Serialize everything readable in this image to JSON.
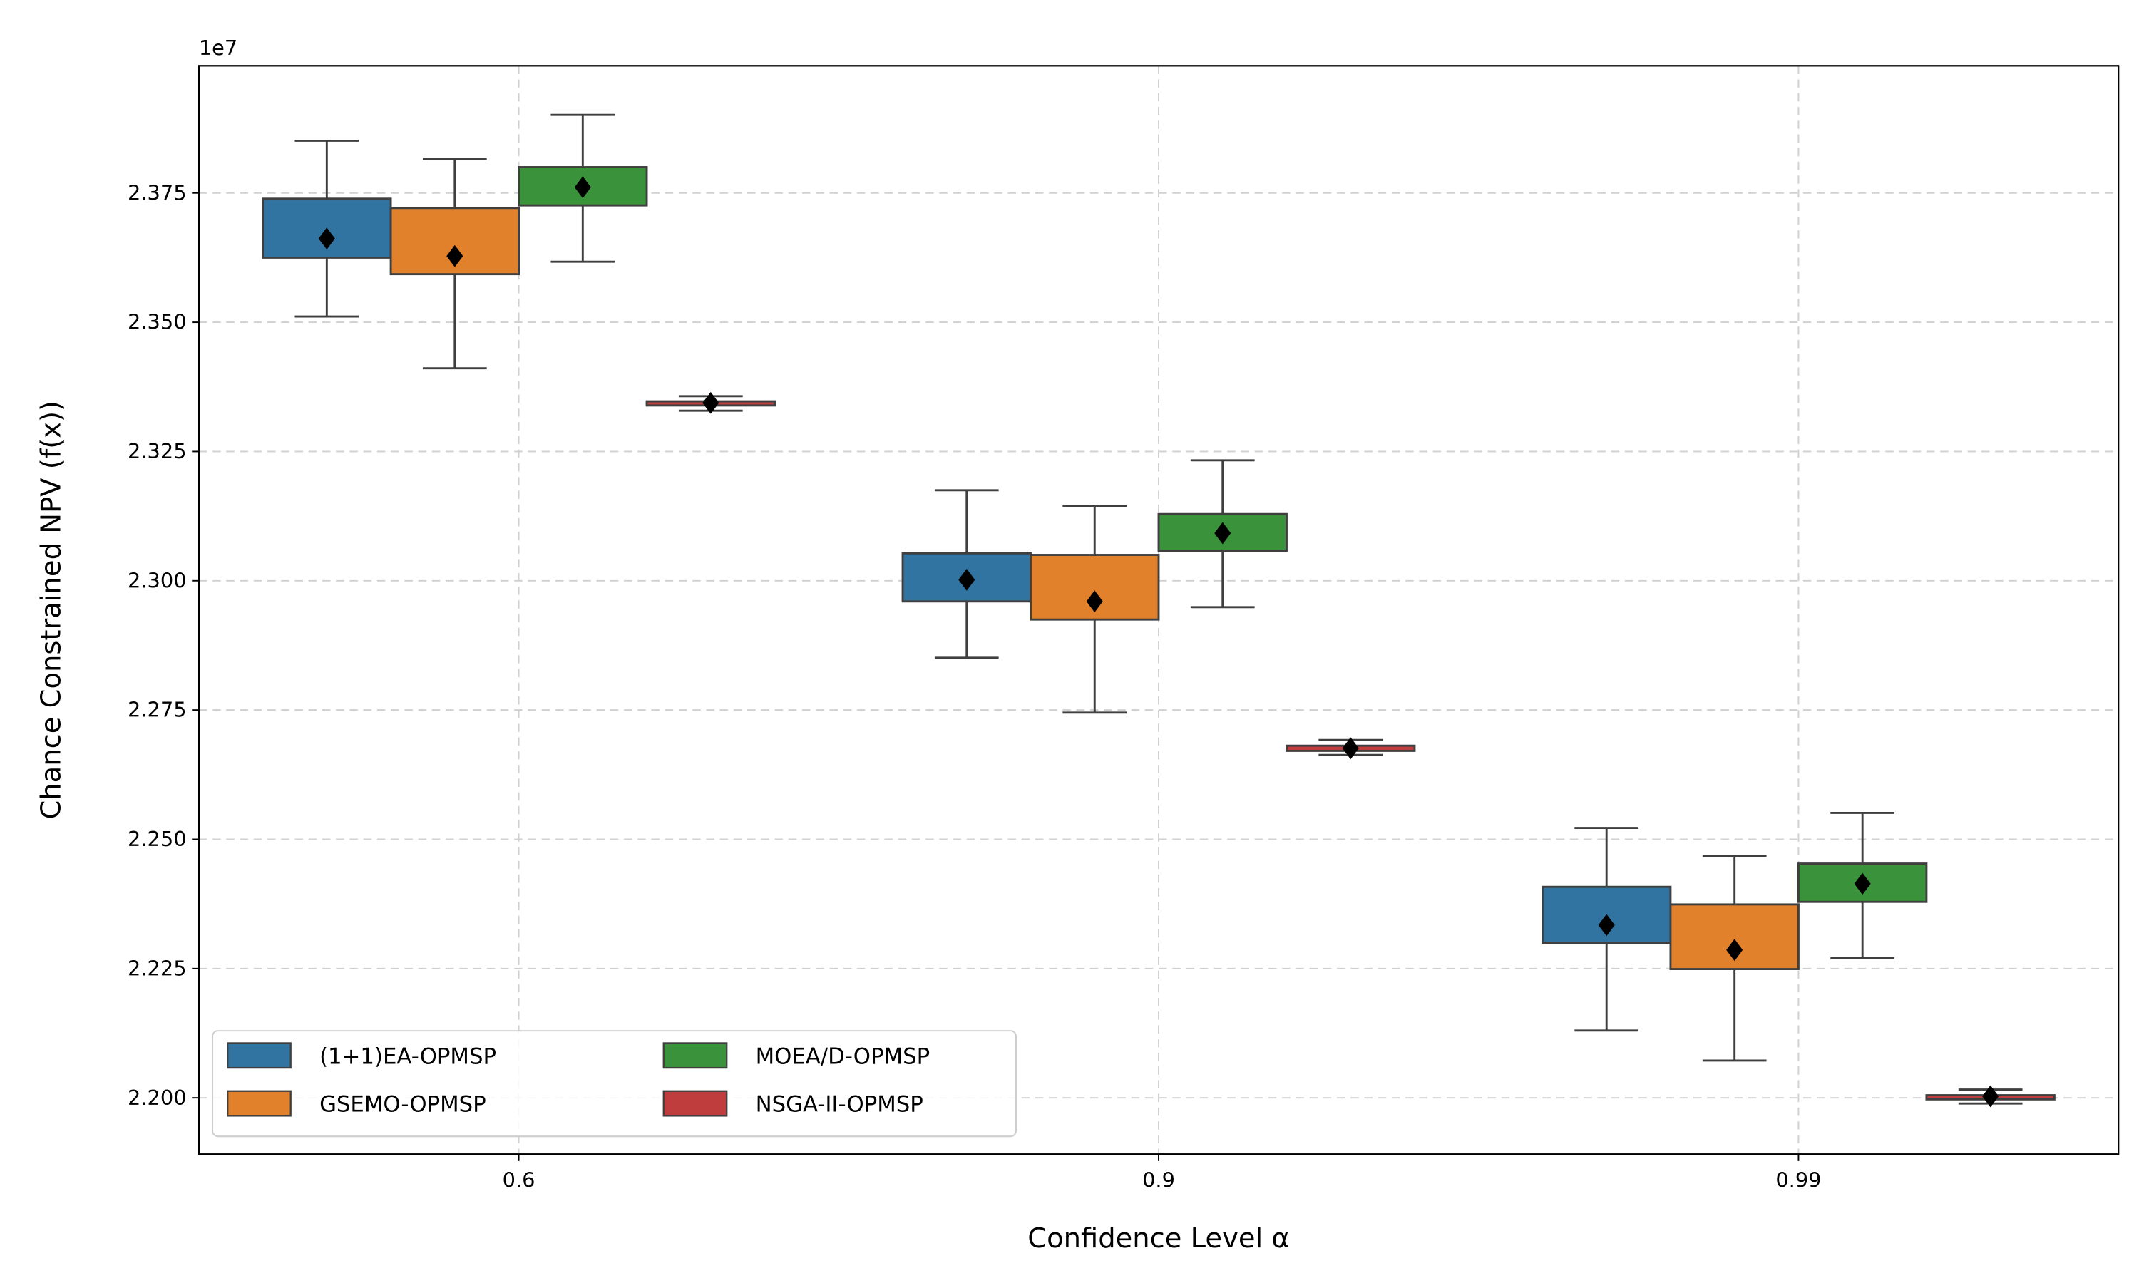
{
  "chart_data": {
    "type": "box",
    "title": "",
    "xlabel": "Confidence Level α",
    "ylabel": "Chance Constrained NPV (f(x))",
    "y_offset_label": "1e7",
    "categories": [
      "0.6",
      "0.9",
      "0.99"
    ],
    "ylim": [
      2.1891,
      2.3996
    ],
    "yticks": [
      2.2,
      2.225,
      2.25,
      2.275,
      2.3,
      2.325,
      2.35,
      2.375
    ],
    "ytick_labels": [
      "2.200",
      "2.225",
      "2.250",
      "2.275",
      "2.300",
      "2.325",
      "2.350",
      "2.375"
    ],
    "grid": true,
    "legend_placement": "lower-left",
    "mean_marker": "black diamond",
    "series": [
      {
        "name": "(1+1)EA-OPMSP",
        "color": "#3274a1",
        "boxes": [
          {
            "whislo": 2.3511,
            "q1": 2.3625,
            "q3": 2.3739,
            "whishi": 2.3851,
            "mean": 2.3662
          },
          {
            "whislo": 2.2851,
            "q1": 2.296,
            "q3": 2.3053,
            "whishi": 2.3175,
            "mean": 2.3002
          },
          {
            "whislo": 2.213,
            "q1": 2.23,
            "q3": 2.2408,
            "whishi": 2.2522,
            "mean": 2.2334
          }
        ]
      },
      {
        "name": "GSEMO-OPMSP",
        "color": "#e1812c",
        "boxes": [
          {
            "whislo": 2.3411,
            "q1": 2.3593,
            "q3": 2.3721,
            "whishi": 2.3816,
            "mean": 2.3628
          },
          {
            "whislo": 2.2745,
            "q1": 2.2925,
            "q3": 2.305,
            "whishi": 2.3145,
            "mean": 2.296
          },
          {
            "whislo": 2.2072,
            "q1": 2.2249,
            "q3": 2.2374,
            "whishi": 2.2467,
            "mean": 2.2286
          }
        ]
      },
      {
        "name": "MOEA/D-OPMSP",
        "color": "#3a923a",
        "boxes": [
          {
            "whislo": 2.3617,
            "q1": 2.3726,
            "q3": 2.38,
            "whishi": 2.3901,
            "mean": 2.3761
          },
          {
            "whislo": 2.2949,
            "q1": 2.3058,
            "q3": 2.3129,
            "whishi": 2.3233,
            "mean": 2.3092
          },
          {
            "whislo": 2.227,
            "q1": 2.2379,
            "q3": 2.2453,
            "whishi": 2.2551,
            "mean": 2.2414
          }
        ]
      },
      {
        "name": "NSGA-II-OPMSP",
        "color": "#c03d3e",
        "boxes": [
          {
            "whislo": 2.3329,
            "q1": 2.3339,
            "q3": 2.3347,
            "whishi": 2.3357,
            "mean": 2.3344
          },
          {
            "whislo": 2.2663,
            "q1": 2.2671,
            "q3": 2.2681,
            "whishi": 2.2692,
            "mean": 2.2676
          },
          {
            "whislo": 2.1989,
            "q1": 2.1997,
            "q3": 2.2005,
            "whishi": 2.2016,
            "mean": 2.2003
          }
        ]
      }
    ]
  }
}
